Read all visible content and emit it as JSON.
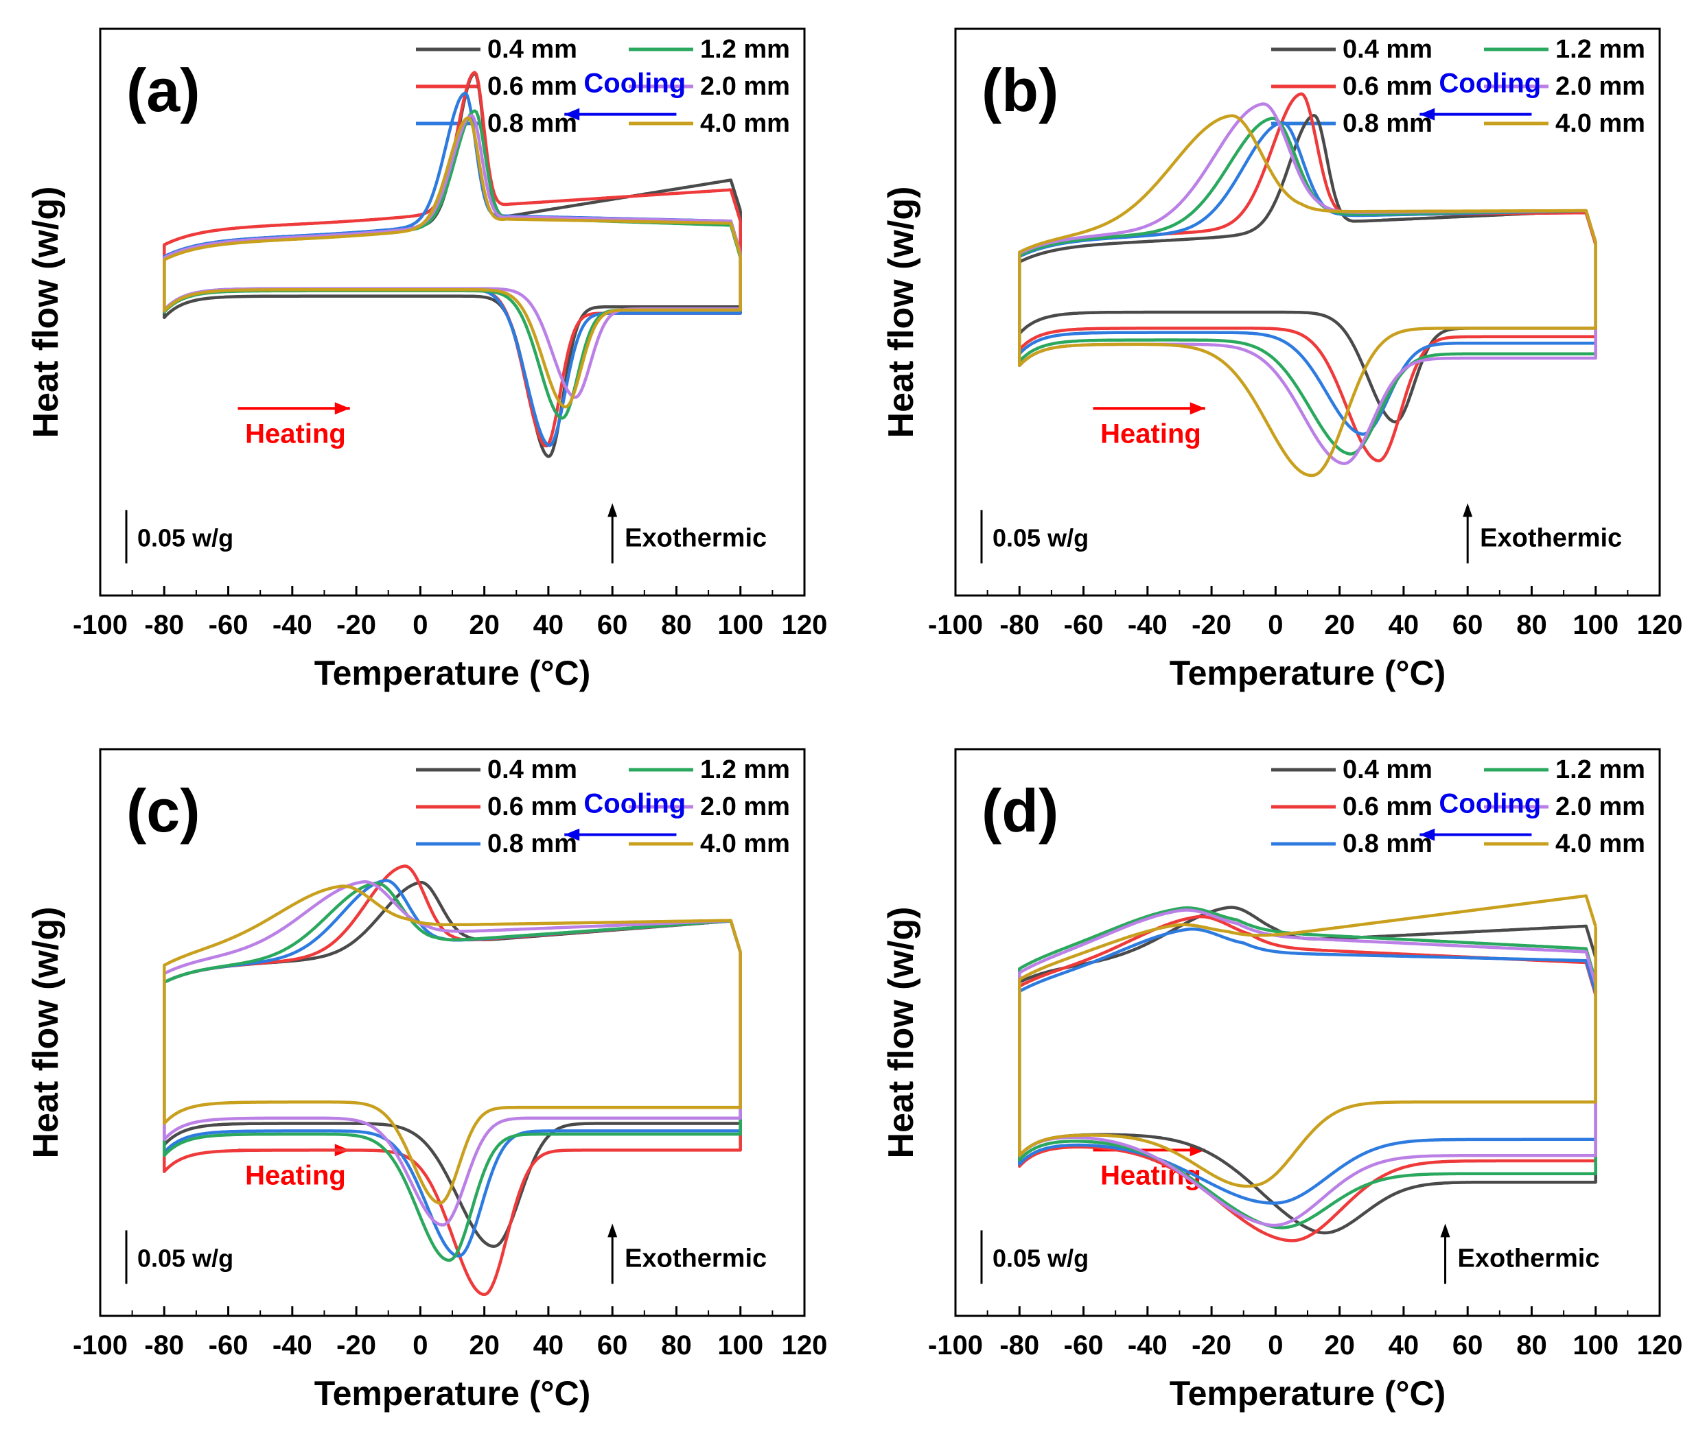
{
  "figure": {
    "xlabel": "Temperature",
    "xunit": "(°C)",
    "ylabel": "Heat flow  (w/g)",
    "scale_bar_label": "0.05 w/g",
    "exothermic_label": "Exothermic",
    "heating_label": "Heating",
    "cooling_label": "Cooling",
    "heating_color": "#ff0000",
    "cooling_color": "#0000ee",
    "legend": [
      {
        "name": "0.4 mm",
        "color": "#4a4a4a"
      },
      {
        "name": "0.6 mm",
        "color": "#ee3a3a"
      },
      {
        "name": "0.8 mm",
        "color": "#2e7be0"
      },
      {
        "name": "1.2 mm",
        "color": "#2aa85e"
      },
      {
        "name": "2.0 mm",
        "color": "#bb80e6"
      },
      {
        "name": "4.0 mm",
        "color": "#c9a01e"
      }
    ]
  },
  "chart_data": [
    {
      "panel": "(a)",
      "type": "line",
      "xlim": [
        -100,
        120
      ],
      "xticks": [
        -100,
        -80,
        -60,
        -40,
        -20,
        0,
        20,
        40,
        60,
        80,
        100,
        120
      ],
      "ylim": [
        -0.33,
        0.2
      ],
      "grid": false,
      "legend": "top-right",
      "scale_bar_w_g": 0.05,
      "series": [
        {
          "name": "0.4 mm",
          "cooling": {
            "base_hot": 0.06,
            "base_cold": 0.005,
            "onset": 28,
            "peak_T": 17,
            "peak_h": 0.138,
            "width": 3.5
          },
          "heating": {
            "base_cold": -0.05,
            "base_hot": -0.06,
            "peak_T": 40,
            "depth": 0.145,
            "width": 4.5
          }
        },
        {
          "name": "0.6 mm",
          "cooling": {
            "base_hot": 0.05,
            "base_cold": 0.016,
            "onset": 28,
            "peak_T": 17,
            "peak_h": 0.128,
            "width": 3.5
          },
          "heating": {
            "base_cold": -0.044,
            "base_hot": -0.066,
            "peak_T": 39,
            "depth": 0.135,
            "width": 4.5
          }
        },
        {
          "name": "0.8 mm",
          "cooling": {
            "base_hot": 0.02,
            "base_cold": 0.005,
            "onset": 26,
            "peak_T": 14,
            "peak_h": 0.12,
            "width": 4
          },
          "heating": {
            "base_cold": -0.043,
            "base_hot": -0.066,
            "peak_T": 40,
            "depth": 0.135,
            "width": 5
          }
        },
        {
          "name": "1.2 mm",
          "cooling": {
            "base_hot": 0.016,
            "base_cold": 0.003,
            "onset": 28,
            "peak_T": 17,
            "peak_h": 0.105,
            "width": 4
          },
          "heating": {
            "base_cold": -0.045,
            "base_hot": -0.063,
            "peak_T": 44,
            "depth": 0.11,
            "width": 5
          }
        },
        {
          "name": "2.0 mm",
          "cooling": {
            "base_hot": 0.02,
            "base_cold": 0.004,
            "onset": 28,
            "peak_T": 16,
            "peak_h": 0.1,
            "width": 4
          },
          "heating": {
            "base_cold": -0.043,
            "base_hot": -0.062,
            "peak_T": 48,
            "depth": 0.092,
            "width": 5
          }
        },
        {
          "name": "4.0 mm",
          "cooling": {
            "base_hot": 0.018,
            "base_cold": 0.002,
            "onset": 27,
            "peak_T": 15,
            "peak_h": 0.1,
            "width": 4
          },
          "heating": {
            "base_cold": -0.044,
            "base_hot": -0.063,
            "peak_T": 45,
            "depth": 0.1,
            "width": 5
          }
        }
      ]
    },
    {
      "panel": "(b)",
      "type": "line",
      "xlim": [
        -100,
        120
      ],
      "xticks": [
        -100,
        -80,
        -60,
        -40,
        -20,
        0,
        20,
        40,
        60,
        80,
        100,
        120
      ],
      "ylim": [
        -0.33,
        0.2
      ],
      "grid": false,
      "legend": "top-right",
      "scale_bar_w_g": 0.05,
      "series": [
        {
          "name": "0.4 mm",
          "cooling": {
            "base_hot": 0.03,
            "base_cold": 0.0,
            "onset": 26,
            "peak_T": 12,
            "peak_h": 0.105,
            "width": 5
          },
          "heating": {
            "base_cold": -0.065,
            "base_hot": -0.08,
            "peak_T": 37,
            "depth": 0.095,
            "width": 6
          }
        },
        {
          "name": "0.6 mm",
          "cooling": {
            "base_hot": 0.028,
            "base_cold": 0.006,
            "onset": 24,
            "peak_T": 8,
            "peak_h": 0.12,
            "width": 6
          },
          "heating": {
            "base_cold": -0.08,
            "base_hot": -0.088,
            "peak_T": 32,
            "depth": 0.12,
            "width": 7
          }
        },
        {
          "name": "0.8 mm",
          "cooling": {
            "base_hot": 0.03,
            "base_cold": 0.005,
            "onset": 20,
            "peak_T": 2,
            "peak_h": 0.095,
            "width": 8
          },
          "heating": {
            "base_cold": -0.084,
            "base_hot": -0.094,
            "peak_T": 27,
            "depth": 0.09,
            "width": 8
          }
        },
        {
          "name": "1.2 mm",
          "cooling": {
            "base_hot": 0.03,
            "base_cold": 0.006,
            "onset": 16,
            "peak_T": -1,
            "peak_h": 0.098,
            "width": 9
          },
          "heating": {
            "base_cold": -0.091,
            "base_hot": -0.104,
            "peak_T": 23,
            "depth": 0.1,
            "width": 9
          }
        },
        {
          "name": "2.0 mm",
          "cooling": {
            "base_hot": 0.03,
            "base_cold": 0.008,
            "onset": 14,
            "peak_T": -4,
            "peak_h": 0.11,
            "width": 10
          },
          "heating": {
            "base_cold": -0.095,
            "base_hot": -0.108,
            "peak_T": 21,
            "depth": 0.105,
            "width": 9
          }
        },
        {
          "name": "4.0 mm",
          "cooling": {
            "base_hot": 0.03,
            "base_cold": 0.009,
            "onset": 8,
            "peak_T": -14,
            "peak_h": 0.1,
            "width": 12
          },
          "heating": {
            "base_cold": -0.095,
            "base_hot": -0.08,
            "peak_T": 12,
            "depth": 0.13,
            "width": 10
          }
        }
      ]
    },
    {
      "panel": "(c)",
      "type": "line",
      "xlim": [
        -100,
        120
      ],
      "xticks": [
        -100,
        -80,
        -60,
        -40,
        -20,
        0,
        20,
        40,
        60,
        80,
        100,
        120
      ],
      "ylim": [
        -0.33,
        0.2
      ],
      "grid": false,
      "legend": "top-right",
      "scale_bar_w_g": 0.05,
      "series": [
        {
          "name": "0.4 mm",
          "cooling": {
            "base_hot": 0.04,
            "base_cold": 0.0,
            "onset": 14,
            "peak_T": 0,
            "peak_h": 0.062,
            "width": 8
          },
          "heating": {
            "base_cold": -0.15,
            "base_hot": -0.15,
            "peak_T": 23,
            "depth": 0.115,
            "width": 8
          }
        },
        {
          "name": "0.6 mm",
          "cooling": {
            "base_hot": 0.04,
            "base_cold": 0.0,
            "onset": 10,
            "peak_T": -5,
            "peak_h": 0.078,
            "width": 8
          },
          "heating": {
            "base_cold": -0.175,
            "base_hot": -0.175,
            "peak_T": 20,
            "depth": 0.135,
            "width": 7
          }
        },
        {
          "name": "0.8 mm",
          "cooling": {
            "base_hot": 0.04,
            "base_cold": 0.0,
            "onset": 7,
            "peak_T": -11,
            "peak_h": 0.066,
            "width": 9
          },
          "heating": {
            "base_cold": -0.157,
            "base_hot": -0.157,
            "peak_T": 12,
            "depth": 0.117,
            "width": 7
          }
        },
        {
          "name": "1.2 mm",
          "cooling": {
            "base_hot": 0.04,
            "base_cold": 0.0,
            "onset": 5,
            "peak_T": -14,
            "peak_h": 0.064,
            "width": 10
          },
          "heating": {
            "base_cold": -0.16,
            "base_hot": -0.16,
            "peak_T": 9,
            "depth": 0.118,
            "width": 7
          }
        },
        {
          "name": "2.0 mm",
          "cooling": {
            "base_hot": 0.04,
            "base_cold": 0.008,
            "onset": 2,
            "peak_T": -18,
            "peak_h": 0.058,
            "width": 12
          },
          "heating": {
            "base_cold": -0.145,
            "base_hot": -0.145,
            "peak_T": 7,
            "depth": 0.1,
            "width": 7
          }
        },
        {
          "name": "4.0 mm",
          "cooling": {
            "base_hot": 0.04,
            "base_cold": 0.015,
            "onset": -4,
            "peak_T": -25,
            "peak_h": 0.048,
            "width": 13
          },
          "heating": {
            "base_cold": -0.13,
            "base_hot": -0.135,
            "peak_T": 6,
            "depth": 0.092,
            "width": 6
          }
        }
      ]
    },
    {
      "panel": "(d)",
      "type": "line",
      "xlim": [
        -100,
        120
      ],
      "xticks": [
        -100,
        -80,
        -60,
        -40,
        -20,
        0,
        20,
        40,
        60,
        80,
        100,
        120
      ],
      "ylim": [
        -0.33,
        0.2
      ],
      "grid": false,
      "legend": "top-right",
      "scale_bar_w_g": 0.05,
      "series": [
        {
          "name": "0.4 mm",
          "cooling": {
            "base_hot": 0.035,
            "base_cold": 0.0,
            "onset": 0,
            "peak_T": -15,
            "peak_h": 0.04,
            "width": 12
          },
          "heating": {
            "base_cold": -0.16,
            "base_hot": -0.205,
            "peak_T": 12,
            "depth": 0.068,
            "width": 14
          }
        },
        {
          "name": "0.6 mm",
          "cooling": {
            "base_hot": 0.0,
            "base_cold": -0.005,
            "onset": -8,
            "peak_T": -25,
            "peak_h": 0.038,
            "width": 14
          },
          "heating": {
            "base_cold": -0.17,
            "base_hot": -0.185,
            "peak_T": 4,
            "depth": 0.082,
            "width": 16
          }
        },
        {
          "name": "0.8 mm",
          "cooling": {
            "base_hot": 0.002,
            "base_cold": -0.01,
            "onset": -10,
            "peak_T": -28,
            "peak_h": 0.032,
            "width": 14
          },
          "heating": {
            "base_cold": -0.168,
            "base_hot": -0.165,
            "peak_T": 0,
            "depth": 0.058,
            "width": 16
          }
        },
        {
          "name": "1.2 mm",
          "cooling": {
            "base_hot": 0.013,
            "base_cold": 0.01,
            "onset": -12,
            "peak_T": -30,
            "peak_h": 0.032,
            "width": 15
          },
          "heating": {
            "base_cold": -0.164,
            "base_hot": -0.197,
            "peak_T": -1,
            "depth": 0.066,
            "width": 16
          }
        },
        {
          "name": "2.0 mm",
          "cooling": {
            "base_hot": 0.01,
            "base_cold": 0.006,
            "onset": -12,
            "peak_T": -30,
            "peak_h": 0.034,
            "width": 15
          },
          "heating": {
            "base_cold": -0.16,
            "base_hot": -0.18,
            "peak_T": -2,
            "depth": 0.075,
            "width": 16
          }
        },
        {
          "name": "4.0 mm",
          "cooling": {
            "base_hot": 0.064,
            "base_cold": 0.0,
            "onset": -15,
            "peak_T": -32,
            "peak_h": 0.026,
            "width": 15
          },
          "heating": {
            "base_cold": -0.16,
            "base_hot": -0.13,
            "peak_T": -5,
            "depth": 0.062,
            "width": 12
          }
        }
      ]
    }
  ]
}
